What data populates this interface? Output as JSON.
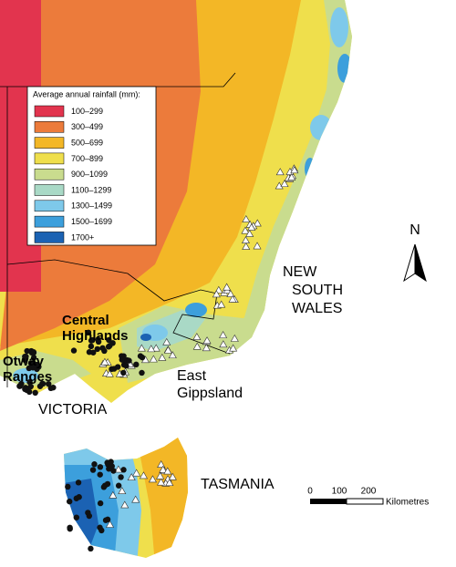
{
  "legend": {
    "title": "Average annual rainfall (mm):",
    "items": [
      {
        "label": "100–299",
        "color": "#e2344e"
      },
      {
        "label": "300–499",
        "color": "#ec7b3b"
      },
      {
        "label": "500–699",
        "color": "#f3b726"
      },
      {
        "label": "700–899",
        "color": "#efdf4c"
      },
      {
        "label": "900–1099",
        "color": "#c9dc8e"
      },
      {
        "label": "1100–1299",
        "color": "#a9d9c6"
      },
      {
        "label": "1300–1499",
        "color": "#7ec9ea"
      },
      {
        "label": "1500–1699",
        "color": "#3c9fdc"
      },
      {
        "label": "1700+",
        "color": "#1b62b3"
      }
    ]
  },
  "labels": {
    "nsw": [
      "NEW",
      "SOUTH",
      "WALES"
    ],
    "central_highlands": [
      "Central",
      "Highlands"
    ],
    "otway_ranges": [
      "Otway",
      "Ranges"
    ],
    "east_gippsland": [
      "East",
      "Gippsland"
    ],
    "victoria": "VICTORIA",
    "tasmania": "TASMANIA"
  },
  "north": "N",
  "scale": {
    "ticks": [
      "0",
      "100",
      "200"
    ],
    "unit": "Kilometres"
  }
}
